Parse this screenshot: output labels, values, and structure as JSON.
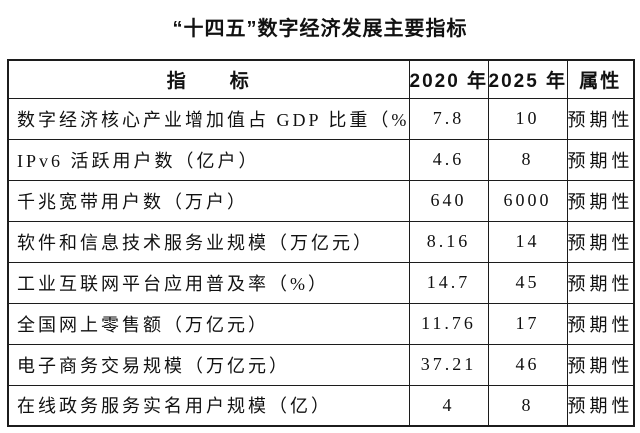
{
  "title": "“十四五”数字经济发展主要指标",
  "table": {
    "headers": {
      "indicator": "指　　标",
      "y2020": "2020 年",
      "y2025": "2025 年",
      "attribute": "属性"
    },
    "rows": [
      {
        "indicator": "数字经济核心产业增加值占 GDP 比重（%）",
        "y2020": "7.8",
        "y2025": "10",
        "attribute": "预期性"
      },
      {
        "indicator": "IPv6 活跃用户数（亿户）",
        "y2020": "4.6",
        "y2025": "8",
        "attribute": "预期性"
      },
      {
        "indicator": "千兆宽带用户数（万户）",
        "y2020": "640",
        "y2025": "6000",
        "attribute": "预期性"
      },
      {
        "indicator": "软件和信息技术服务业规模（万亿元）",
        "y2020": "8.16",
        "y2025": "14",
        "attribute": "预期性"
      },
      {
        "indicator": "工业互联网平台应用普及率（%）",
        "y2020": "14.7",
        "y2025": "45",
        "attribute": "预期性"
      },
      {
        "indicator": "全国网上零售额（万亿元）",
        "y2020": "11.76",
        "y2025": "17",
        "attribute": "预期性"
      },
      {
        "indicator": "电子商务交易规模（万亿元）",
        "y2020": "37.21",
        "y2025": "46",
        "attribute": "预期性"
      },
      {
        "indicator": "在线政务服务实名用户规模（亿）",
        "y2020": "4",
        "y2025": "8",
        "attribute": "预期性"
      }
    ]
  }
}
